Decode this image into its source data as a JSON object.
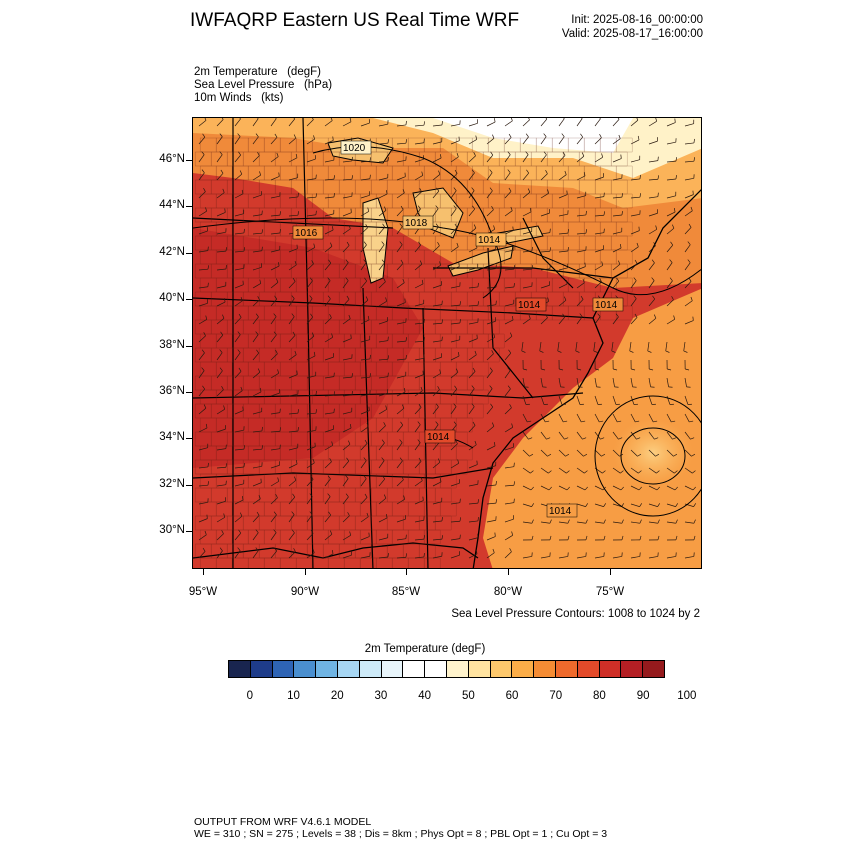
{
  "header": {
    "title": "IWFAQRP Eastern US Real Time WRF",
    "init": "Init: 2025-08-16_00:00:00",
    "valid": "Valid: 2025-08-17_16:00:00"
  },
  "fields": {
    "temperature": "2m Temperature   (degF)",
    "pressure": "Sea Level Pressure   (hPa)",
    "winds": "10m Winds   (kts)"
  },
  "axes": {
    "lat_labels": [
      "46°N",
      "44°N",
      "42°N",
      "40°N",
      "38°N",
      "36°N",
      "34°N",
      "32°N",
      "30°N"
    ],
    "lon_labels": [
      "95°W",
      "90°W",
      "85°W",
      "80°W",
      "75°W"
    ]
  },
  "isobar_labels": [
    "1020",
    "1018",
    "1016",
    "1014",
    "1014",
    "1014",
    "1014",
    "1014"
  ],
  "contour_note": "Sea Level Pressure Contours: 1008 to 1024 by 2",
  "colorbar": {
    "title": "2m Temperature  (degF)",
    "labels": [
      "0",
      "10",
      "20",
      "30",
      "40",
      "50",
      "60",
      "70",
      "80",
      "90",
      "100"
    ],
    "colors": [
      "#19254f",
      "#1e3c8a",
      "#2e64b5",
      "#4a8fcf",
      "#6fb4e3",
      "#a6d6f3",
      "#cdeaf8",
      "#e8f5fb",
      "#ffffff",
      "#ffffff",
      "#fff3cc",
      "#ffe3a0",
      "#fdc86c",
      "#fbad48",
      "#f58c34",
      "#ef6a2c",
      "#e34a2a",
      "#cf2f27",
      "#b41f24",
      "#951a1d"
    ]
  },
  "footer": {
    "line1": "OUTPUT FROM WRF V4.6.1 MODEL",
    "line2": "WE = 310 ; SN = 275 ; Levels = 38 ; Dis = 8km ; Phys Opt = 8 ; PBL Opt = 1 ; Cu Opt = 3"
  }
}
